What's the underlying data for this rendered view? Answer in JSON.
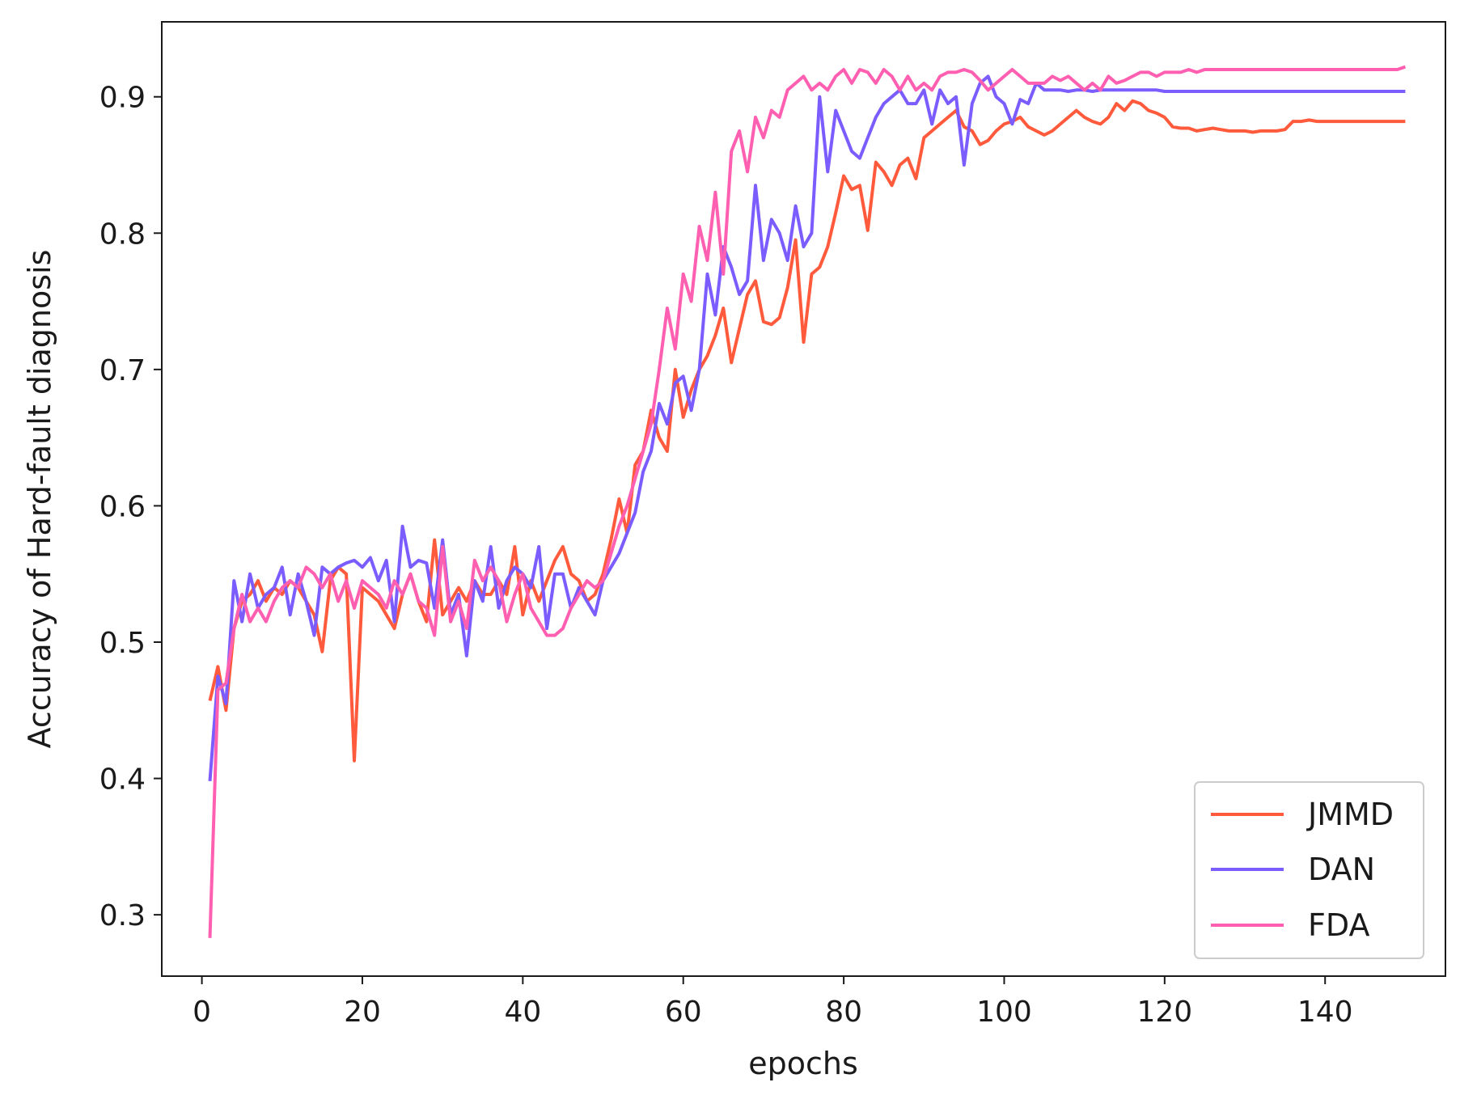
{
  "chart_data": {
    "type": "line",
    "title": "",
    "xlabel": "epochs",
    "ylabel": "Accuracy of Hard-fault diagnosis",
    "xlim": [
      -5,
      155
    ],
    "ylim": [
      0.255,
      0.955
    ],
    "xticks": [
      0,
      20,
      40,
      60,
      80,
      100,
      120,
      140
    ],
    "yticks": [
      0.3,
      0.4,
      0.5,
      0.6,
      0.7,
      0.8,
      0.9
    ],
    "ytick_labels": [
      "0.3",
      "0.4",
      "0.5",
      "0.6",
      "0.7",
      "0.8",
      "0.9"
    ],
    "grid": false,
    "legend_position": "lower-right",
    "x": [
      1,
      2,
      3,
      4,
      5,
      6,
      7,
      8,
      9,
      10,
      11,
      12,
      13,
      14,
      15,
      16,
      17,
      18,
      19,
      20,
      21,
      22,
      23,
      24,
      25,
      26,
      27,
      28,
      29,
      30,
      31,
      32,
      33,
      34,
      35,
      36,
      37,
      38,
      39,
      40,
      41,
      42,
      43,
      44,
      45,
      46,
      47,
      48,
      49,
      50,
      51,
      52,
      53,
      54,
      55,
      56,
      57,
      58,
      59,
      60,
      61,
      62,
      63,
      64,
      65,
      66,
      67,
      68,
      69,
      70,
      71,
      72,
      73,
      74,
      75,
      76,
      77,
      78,
      79,
      80,
      81,
      82,
      83,
      84,
      85,
      86,
      87,
      88,
      89,
      90,
      91,
      92,
      93,
      94,
      95,
      96,
      97,
      98,
      99,
      100,
      101,
      102,
      103,
      104,
      105,
      106,
      107,
      108,
      109,
      110,
      111,
      112,
      113,
      114,
      115,
      116,
      117,
      118,
      119,
      120,
      121,
      122,
      123,
      124,
      125,
      126,
      127,
      128,
      129,
      130,
      131,
      132,
      133,
      134,
      135,
      136,
      137,
      138,
      139,
      140,
      141,
      142,
      143,
      144,
      145,
      146,
      147,
      148,
      149,
      150
    ],
    "series": [
      {
        "name": "JMMD",
        "color": "#ff5a3c",
        "values": [
          0.457,
          0.482,
          0.45,
          0.51,
          0.53,
          0.535,
          0.545,
          0.53,
          0.54,
          0.535,
          0.545,
          0.54,
          0.53,
          0.52,
          0.493,
          0.545,
          0.555,
          0.55,
          0.413,
          0.54,
          0.535,
          0.53,
          0.52,
          0.51,
          0.535,
          0.55,
          0.53,
          0.515,
          0.575,
          0.52,
          0.53,
          0.54,
          0.53,
          0.545,
          0.535,
          0.535,
          0.545,
          0.535,
          0.57,
          0.52,
          0.545,
          0.53,
          0.545,
          0.56,
          0.57,
          0.55,
          0.545,
          0.53,
          0.535,
          0.55,
          0.575,
          0.605,
          0.58,
          0.63,
          0.64,
          0.67,
          0.65,
          0.64,
          0.7,
          0.665,
          0.685,
          0.7,
          0.71,
          0.725,
          0.745,
          0.705,
          0.73,
          0.755,
          0.765,
          0.735,
          0.733,
          0.738,
          0.76,
          0.795,
          0.72,
          0.77,
          0.775,
          0.79,
          0.815,
          0.842,
          0.832,
          0.835,
          0.802,
          0.852,
          0.845,
          0.835,
          0.85,
          0.855,
          0.84,
          0.87,
          0.875,
          0.88,
          0.885,
          0.89,
          0.878,
          0.875,
          0.865,
          0.868,
          0.875,
          0.88,
          0.882,
          0.885,
          0.878,
          0.875,
          0.872,
          0.875,
          0.88,
          0.885,
          0.89,
          0.885,
          0.882,
          0.88,
          0.885,
          0.895,
          0.89,
          0.897,
          0.895,
          0.89,
          0.888,
          0.885,
          0.878,
          0.877,
          0.877,
          0.875,
          0.876,
          0.877,
          0.876,
          0.875,
          0.875,
          0.875,
          0.874,
          0.875,
          0.875,
          0.875,
          0.876,
          0.882,
          0.882,
          0.883,
          0.882,
          0.882,
          0.882,
          0.882,
          0.882,
          0.882,
          0.882,
          0.882,
          0.882,
          0.882,
          0.882,
          0.882
        ]
      },
      {
        "name": "DAN",
        "color": "#7a5cff",
        "values": [
          0.398,
          0.475,
          0.455,
          0.545,
          0.515,
          0.55,
          0.525,
          0.535,
          0.54,
          0.555,
          0.52,
          0.55,
          0.53,
          0.505,
          0.555,
          0.55,
          0.555,
          0.558,
          0.56,
          0.555,
          0.562,
          0.545,
          0.56,
          0.515,
          0.585,
          0.555,
          0.56,
          0.558,
          0.525,
          0.575,
          0.52,
          0.535,
          0.49,
          0.545,
          0.53,
          0.57,
          0.525,
          0.545,
          0.555,
          0.55,
          0.54,
          0.57,
          0.51,
          0.55,
          0.55,
          0.525,
          0.54,
          0.53,
          0.52,
          0.545,
          0.555,
          0.565,
          0.58,
          0.595,
          0.625,
          0.64,
          0.675,
          0.66,
          0.69,
          0.695,
          0.67,
          0.7,
          0.77,
          0.74,
          0.79,
          0.775,
          0.755,
          0.765,
          0.835,
          0.78,
          0.81,
          0.8,
          0.78,
          0.82,
          0.79,
          0.8,
          0.9,
          0.845,
          0.89,
          0.875,
          0.86,
          0.855,
          0.87,
          0.885,
          0.895,
          0.9,
          0.905,
          0.895,
          0.895,
          0.905,
          0.88,
          0.905,
          0.895,
          0.9,
          0.85,
          0.895,
          0.91,
          0.915,
          0.9,
          0.895,
          0.88,
          0.898,
          0.895,
          0.91,
          0.905,
          0.905,
          0.905,
          0.904,
          0.905,
          0.905,
          0.904,
          0.905,
          0.905,
          0.905,
          0.905,
          0.905,
          0.905,
          0.905,
          0.905,
          0.904,
          0.904,
          0.904,
          0.904,
          0.904,
          0.904,
          0.904,
          0.904,
          0.904,
          0.904,
          0.904,
          0.904,
          0.904,
          0.904,
          0.904,
          0.904,
          0.904,
          0.904,
          0.904,
          0.904,
          0.904,
          0.904,
          0.904,
          0.904,
          0.904,
          0.904,
          0.904,
          0.904,
          0.904,
          0.904,
          0.904
        ]
      },
      {
        "name": "FDA",
        "color": "#ff5fb0",
        "values": [
          0.283,
          0.465,
          0.47,
          0.51,
          0.535,
          0.515,
          0.525,
          0.515,
          0.53,
          0.54,
          0.545,
          0.54,
          0.555,
          0.55,
          0.54,
          0.55,
          0.53,
          0.545,
          0.525,
          0.545,
          0.54,
          0.535,
          0.525,
          0.545,
          0.535,
          0.55,
          0.53,
          0.525,
          0.505,
          0.57,
          0.515,
          0.53,
          0.51,
          0.56,
          0.545,
          0.555,
          0.545,
          0.515,
          0.535,
          0.55,
          0.525,
          0.515,
          0.505,
          0.505,
          0.51,
          0.525,
          0.535,
          0.545,
          0.54,
          0.545,
          0.565,
          0.585,
          0.6,
          0.62,
          0.64,
          0.66,
          0.7,
          0.745,
          0.715,
          0.77,
          0.75,
          0.805,
          0.78,
          0.83,
          0.77,
          0.86,
          0.875,
          0.845,
          0.885,
          0.87,
          0.89,
          0.885,
          0.905,
          0.91,
          0.915,
          0.905,
          0.91,
          0.905,
          0.915,
          0.92,
          0.91,
          0.92,
          0.918,
          0.91,
          0.92,
          0.915,
          0.905,
          0.915,
          0.905,
          0.91,
          0.905,
          0.915,
          0.918,
          0.918,
          0.92,
          0.918,
          0.912,
          0.905,
          0.91,
          0.915,
          0.92,
          0.915,
          0.91,
          0.91,
          0.91,
          0.915,
          0.912,
          0.915,
          0.91,
          0.905,
          0.91,
          0.905,
          0.915,
          0.91,
          0.912,
          0.915,
          0.918,
          0.918,
          0.915,
          0.918,
          0.918,
          0.918,
          0.92,
          0.918,
          0.92,
          0.92,
          0.92,
          0.92,
          0.92,
          0.92,
          0.92,
          0.92,
          0.92,
          0.92,
          0.92,
          0.92,
          0.92,
          0.92,
          0.92,
          0.92,
          0.92,
          0.92,
          0.92,
          0.92,
          0.92,
          0.92,
          0.92,
          0.92,
          0.92,
          0.922
        ]
      }
    ]
  }
}
